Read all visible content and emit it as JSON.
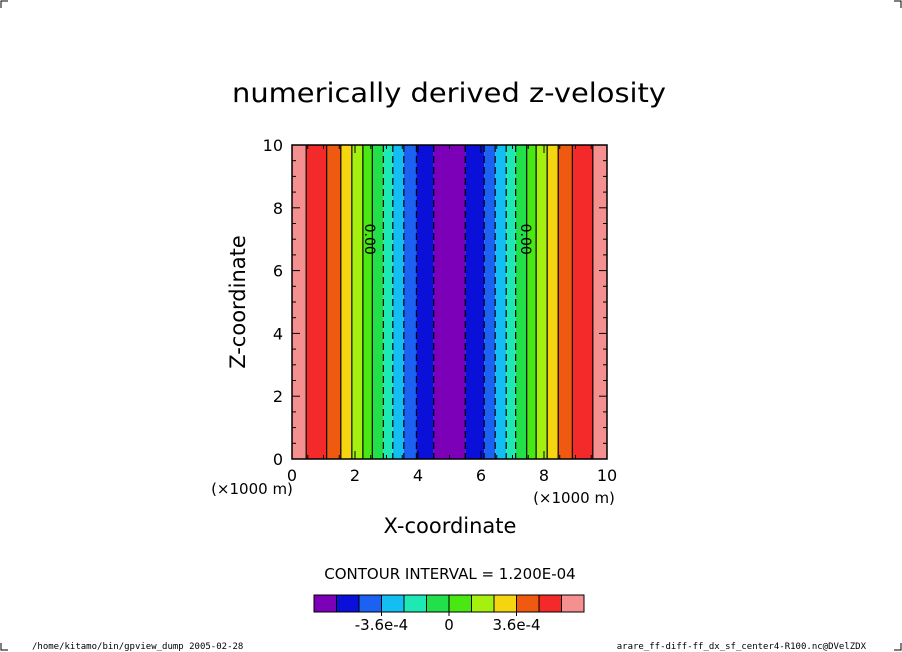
{
  "chart_data": {
    "type": "heatmap",
    "title": "numerically derived z-velosity",
    "xlabel": "X-coordinate",
    "ylabel": "Z-coordinate",
    "x_unit_label": "(×1000 m)",
    "y_unit_label": "(×1000 m)",
    "xlim": [
      0,
      10
    ],
    "ylim": [
      0,
      10
    ],
    "x_ticks": [
      "0",
      "2",
      "4",
      "6",
      "8",
      "10"
    ],
    "y_ticks": [
      "0",
      "2",
      "4",
      "6",
      "8",
      "10"
    ],
    "x_tick_values": [
      0,
      2,
      4,
      6,
      8,
      10
    ],
    "y_tick_values": [
      0,
      2,
      4,
      6,
      8,
      10
    ],
    "contour_interval_text": "CONTOUR INTERVAL = 1.200E-04",
    "contour_labels": [
      {
        "text": "0.00",
        "x": 2.45,
        "z": 7.0
      },
      {
        "text": "0.00",
        "x": 7.4,
        "z": 7.0
      }
    ],
    "bands": [
      {
        "x0": 0.0,
        "x1": 0.45,
        "color": "#f49090"
      },
      {
        "x0": 0.45,
        "x1": 1.1,
        "color": "#f42a2a"
      },
      {
        "x0": 1.1,
        "x1": 1.55,
        "color": "#f05a10"
      },
      {
        "x0": 1.55,
        "x1": 1.9,
        "color": "#f5d410"
      },
      {
        "x0": 1.9,
        "x1": 2.25,
        "color": "#a4f00e"
      },
      {
        "x0": 2.25,
        "x1": 2.55,
        "color": "#48e812"
      },
      {
        "x0": 2.55,
        "x1": 2.9,
        "color": "#22e04a"
      },
      {
        "x0": 2.9,
        "x1": 3.2,
        "color": "#1ee8b4"
      },
      {
        "x0": 3.2,
        "x1": 3.55,
        "color": "#12bef2"
      },
      {
        "x0": 3.55,
        "x1": 3.95,
        "color": "#1b62f2"
      },
      {
        "x0": 3.95,
        "x1": 4.5,
        "color": "#0a10d8"
      },
      {
        "x0": 4.5,
        "x1": 5.5,
        "color": "#7b00b8"
      },
      {
        "x0": 5.5,
        "x1": 6.1,
        "color": "#0a10d8"
      },
      {
        "x0": 6.1,
        "x1": 6.45,
        "color": "#1b62f2"
      },
      {
        "x0": 6.45,
        "x1": 6.8,
        "color": "#12bef2"
      },
      {
        "x0": 6.8,
        "x1": 7.1,
        "color": "#1ee8b4"
      },
      {
        "x0": 7.1,
        "x1": 7.45,
        "color": "#22e04a"
      },
      {
        "x0": 7.45,
        "x1": 7.75,
        "color": "#48e812"
      },
      {
        "x0": 7.75,
        "x1": 8.1,
        "color": "#a4f00e"
      },
      {
        "x0": 8.1,
        "x1": 8.45,
        "color": "#f5d410"
      },
      {
        "x0": 8.45,
        "x1": 8.9,
        "color": "#f05a10"
      },
      {
        "x0": 8.9,
        "x1": 9.55,
        "color": "#f42a2a"
      },
      {
        "x0": 9.55,
        "x1": 10.0,
        "color": "#f49090"
      }
    ],
    "contour_lines": [
      {
        "x": 0.45,
        "style": "solid"
      },
      {
        "x": 1.1,
        "style": "solid"
      },
      {
        "x": 1.55,
        "style": "solid"
      },
      {
        "x": 1.9,
        "style": "solid"
      },
      {
        "x": 2.25,
        "style": "solid"
      },
      {
        "x": 2.55,
        "style": "solid"
      },
      {
        "x": 2.9,
        "style": "dashed"
      },
      {
        "x": 3.2,
        "style": "dashed"
      },
      {
        "x": 3.55,
        "style": "dashed"
      },
      {
        "x": 3.95,
        "style": "dashed"
      },
      {
        "x": 4.5,
        "style": "dashed"
      },
      {
        "x": 5.5,
        "style": "dashed"
      },
      {
        "x": 6.1,
        "style": "dashed"
      },
      {
        "x": 6.45,
        "style": "dashed"
      },
      {
        "x": 6.8,
        "style": "dashed"
      },
      {
        "x": 7.1,
        "style": "dashed"
      },
      {
        "x": 7.45,
        "style": "solid"
      },
      {
        "x": 7.75,
        "style": "solid"
      },
      {
        "x": 8.1,
        "style": "solid"
      },
      {
        "x": 8.45,
        "style": "solid"
      },
      {
        "x": 8.9,
        "style": "solid"
      },
      {
        "x": 9.55,
        "style": "solid"
      }
    ],
    "colorbar": {
      "colors": [
        "#7b00b8",
        "#0a10d8",
        "#1b62f2",
        "#12bef2",
        "#1ee8b4",
        "#22e04a",
        "#48e812",
        "#a4f00e",
        "#f5d410",
        "#f05a10",
        "#f42a2a",
        "#f49090"
      ],
      "labels": [
        "-3.6e-4",
        "0",
        "3.6e-4"
      ],
      "label_levels": [
        -0.00036,
        0,
        0.00036
      ],
      "level_min": -0.00072,
      "level_max": 0.00072
    }
  },
  "footer": {
    "left": "/home/kitamo/bin/gpview_dump  2005-02-28",
    "right": "arare_ff-diff-ff_dx_sf_center4-R100.nc@DVelZDX"
  }
}
